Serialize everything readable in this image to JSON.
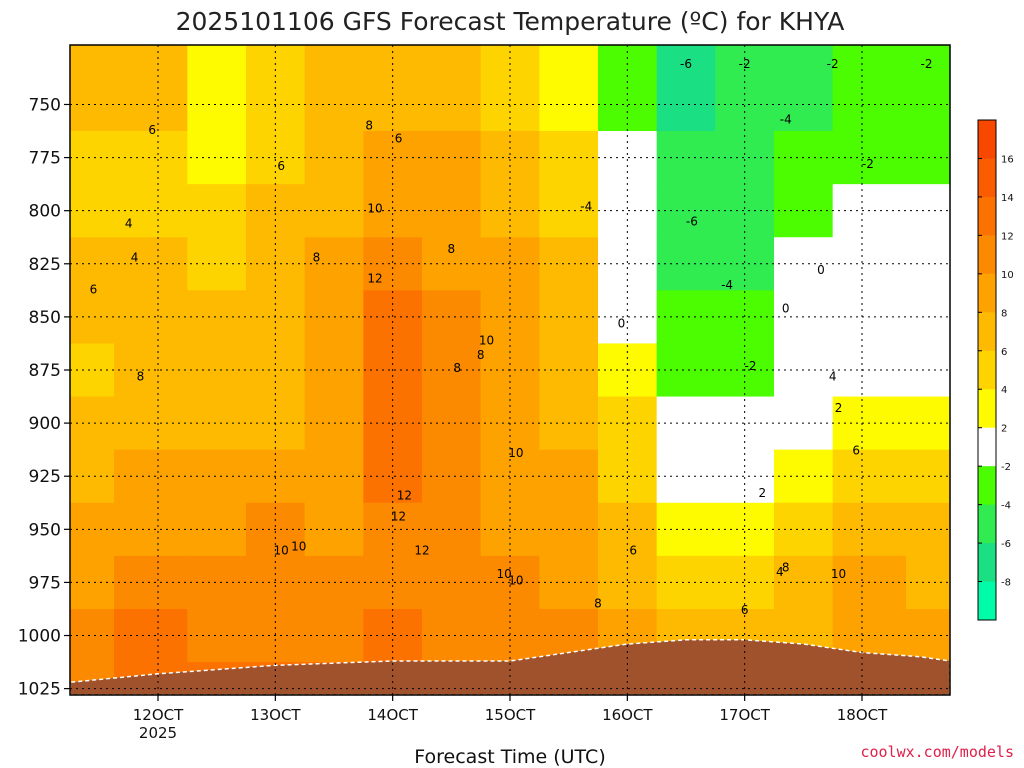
{
  "title": "2025101106 GFS Forecast Temperature (ºC) for KHYA",
  "credit": "coolwx.com/models",
  "chart_data": {
    "type": "heatmap",
    "title": "2025101106 GFS Forecast Temperature (ºC) for KHYA",
    "xlabel": "Forecast Time (UTC)",
    "ylabel": "",
    "x_ticks": [
      {
        "day": 12,
        "label": "12OCT",
        "sub": "2025"
      },
      {
        "day": 13,
        "label": "13OCT",
        "sub": ""
      },
      {
        "day": 14,
        "label": "14OCT",
        "sub": ""
      },
      {
        "day": 15,
        "label": "15OCT",
        "sub": ""
      },
      {
        "day": 16,
        "label": "16OCT",
        "sub": ""
      },
      {
        "day": 17,
        "label": "17OCT",
        "sub": ""
      },
      {
        "day": 18,
        "label": "18OCT",
        "sub": ""
      }
    ],
    "xlim": [
      11.25,
      18.75
    ],
    "y_ticks": [
      "750",
      "775",
      "800",
      "825",
      "850",
      "875",
      "900",
      "925",
      "950",
      "975",
      "1000",
      "1025"
    ],
    "y_tick_values": [
      750,
      775,
      800,
      825,
      850,
      875,
      900,
      925,
      950,
      975,
      1000,
      1025
    ],
    "ylim": [
      722,
      1028
    ],
    "y_inverted": true,
    "grid": true,
    "colorbar": {
      "labels": [
        "16",
        "14",
        "12",
        "10",
        "8",
        "6",
        "4",
        "2",
        "-2",
        "-4",
        "-6",
        "-8"
      ],
      "boundaries": [
        18,
        16,
        14,
        12,
        10,
        8,
        6,
        4,
        2,
        -2,
        -4,
        -6,
        -8,
        -10
      ],
      "colors": [
        "#f84800",
        "#fa5c00",
        "#fb7200",
        "#fc8a00",
        "#fea200",
        "#feba00",
        "#fed400",
        "#fefa00",
        "#ffffff",
        "#4cfc00",
        "#30ec50",
        "#1ae083",
        "#00fca8"
      ]
    },
    "ground_surface": [
      {
        "day": 11.25,
        "p": 1022
      },
      {
        "day": 12.0,
        "p": 1018
      },
      {
        "day": 13.0,
        "p": 1014
      },
      {
        "day": 14.0,
        "p": 1012
      },
      {
        "day": 15.0,
        "p": 1012
      },
      {
        "day": 15.5,
        "p": 1008
      },
      {
        "day": 16.0,
        "p": 1004
      },
      {
        "day": 16.5,
        "p": 1002
      },
      {
        "day": 17.0,
        "p": 1002
      },
      {
        "day": 17.5,
        "p": 1004
      },
      {
        "day": 18.0,
        "p": 1008
      },
      {
        "day": 18.5,
        "p": 1010
      },
      {
        "day": 18.75,
        "p": 1012
      }
    ],
    "contour_labels": [
      "6",
      "4",
      "4",
      "6",
      "8",
      "8",
      "6",
      "8",
      "10",
      "8",
      "12",
      "6",
      "8",
      "10",
      "8",
      "8",
      "12",
      "10",
      "10",
      "12",
      "12",
      "10",
      "10",
      "10",
      "8",
      "6",
      "0",
      "-6",
      "-2",
      "-4",
      "-6",
      "-4",
      "-2",
      "-4",
      "-2",
      "-2",
      "0",
      "-2",
      "0",
      "2",
      "4",
      "6",
      "8",
      "10",
      "2",
      "4",
      "6"
    ],
    "series": [
      {
        "name": "",
        "day": 11.25,
        "temperature": [
          7,
          6,
          5.5,
          7,
          8,
          5,
          7,
          8,
          9,
          10,
          11,
          12
        ]
      },
      {
        "name": "",
        "day": 12.0,
        "temperature": [
          7,
          6,
          6,
          7,
          7.5,
          7,
          7.5,
          9,
          10,
          11,
          12.5,
          14
        ]
      },
      {
        "name": "",
        "day": 12.5,
        "temperature": [
          3,
          4,
          5,
          6,
          7,
          7,
          8,
          8.5,
          10,
          11,
          12,
          13
        ]
      },
      {
        "name": "",
        "day": 13.0,
        "temperature": [
          5,
          5.5,
          6.5,
          7,
          7.5,
          8,
          8,
          9,
          10.5,
          11,
          12,
          13
        ]
      },
      {
        "name": "",
        "day": 13.5,
        "temperature": [
          7,
          7,
          8,
          8.5,
          9,
          9,
          9,
          9,
          10,
          11,
          12,
          13
        ]
      },
      {
        "name": "",
        "day": 14.0,
        "temperature": [
          8,
          9,
          10,
          11,
          12.5,
          13,
          13,
          12.5,
          12,
          12,
          13,
          14
        ]
      },
      {
        "name": "",
        "day": 14.5,
        "temperature": [
          8,
          9,
          9.5,
          10,
          11,
          11.5,
          12,
          11,
          11,
          11,
          12,
          13
        ]
      },
      {
        "name": "",
        "day": 15.0,
        "temperature": [
          6,
          7,
          8,
          8.5,
          8.5,
          9,
          10,
          10,
          10,
          10.5,
          11,
          12
        ]
      },
      {
        "name": "",
        "day": 15.5,
        "temperature": [
          4,
          5,
          6,
          7,
          8,
          8,
          8,
          8.5,
          9,
          10,
          11,
          11
        ]
      },
      {
        "name": "",
        "day": 16.0,
        "temperature": [
          -3,
          -1,
          0,
          1,
          2,
          4,
          5,
          6,
          7,
          8,
          9,
          10
        ]
      },
      {
        "name": "",
        "day": 16.5,
        "temperature": [
          -6,
          -5,
          -4.5,
          -4,
          -3,
          -2,
          0,
          2,
          4,
          6,
          8,
          9
        ]
      },
      {
        "name": "",
        "day": 17.0,
        "temperature": [
          -5,
          -4,
          -5,
          -4,
          -3,
          -2,
          0,
          2,
          3,
          5,
          7,
          9
        ]
      },
      {
        "name": "",
        "day": 17.5,
        "temperature": [
          -4,
          -3,
          -2,
          0,
          0,
          1,
          2,
          4,
          5,
          7,
          8,
          9
        ]
      },
      {
        "name": "",
        "day": 18.0,
        "temperature": [
          -2,
          -2,
          -1,
          -1,
          0,
          1,
          3,
          5,
          7,
          9,
          10,
          11
        ]
      },
      {
        "name": "",
        "day": 18.75,
        "temperature": [
          -2,
          -2,
          -1,
          -1,
          1,
          2,
          4,
          6,
          7,
          8,
          9,
          10
        ]
      }
    ]
  }
}
